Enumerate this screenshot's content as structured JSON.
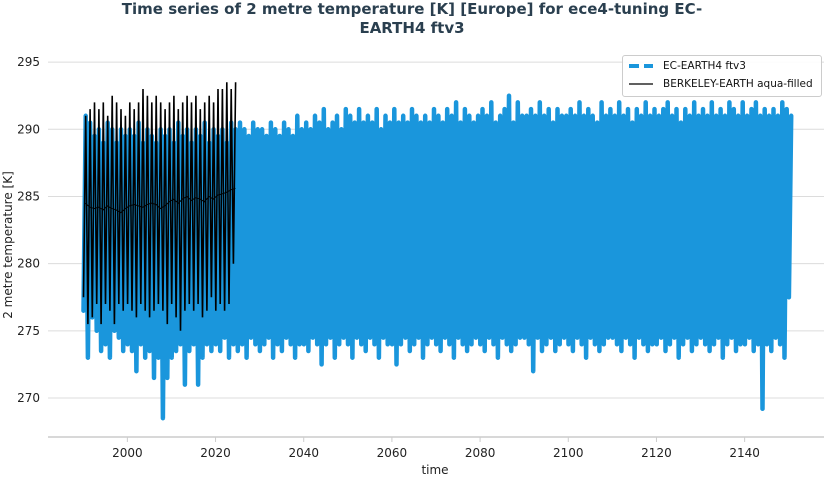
{
  "chart_data": {
    "type": "line",
    "title": "Time series of 2 metre temperature [K] [Europe] for ece4-tuning EC-EARTH4 ftv3",
    "title_lines": [
      "Time series of 2 metre temperature [K] [Europe] for ece4-tuning EC-",
      "EARTH4 ftv3"
    ],
    "xlabel": "time",
    "ylabel": "2 metre temperature [K]",
    "xlim": [
      1982,
      2158
    ],
    "ylim": [
      267.1,
      295.9
    ],
    "xticks": [
      "2000",
      "2020",
      "2040",
      "2060",
      "2080",
      "2100",
      "2120",
      "2140"
    ],
    "yticks": [
      "270",
      "275",
      "280",
      "285",
      "290",
      "295"
    ],
    "grid": "horizontal",
    "legend_position": "top-right",
    "series": [
      {
        "name": "EC-EARTH4 ftv3",
        "color": "#1a96dc",
        "style": "dashed-legend, thick",
        "x_start_year": 1990,
        "annual_max": [
          291,
          290.5,
          289.5,
          290,
          289,
          290.5,
          290,
          289,
          290,
          289.5,
          290,
          289.5,
          290.5,
          289,
          290,
          289.5,
          289,
          290,
          289.5,
          290,
          289,
          290.5,
          289.5,
          290,
          289,
          290,
          289.5,
          290.5,
          289,
          290,
          289.5,
          290,
          289,
          290.5,
          290,
          290.5,
          290,
          289.5,
          290.5,
          290,
          290,
          289.5,
          290.5,
          290,
          289.5,
          290.5,
          290,
          289.5,
          291,
          290,
          290.5,
          290,
          291,
          290.5,
          291.5,
          290,
          290.5,
          291,
          290,
          291.5,
          291,
          290.5,
          291.5,
          290.5,
          291,
          290.5,
          291.5,
          290,
          291,
          290.5,
          291.5,
          290.5,
          291,
          290.5,
          291.5,
          291,
          290.5,
          291,
          290.5,
          291.5,
          291,
          290.5,
          291.5,
          291,
          292,
          290.5,
          291.5,
          291,
          290.5,
          291,
          291.5,
          291,
          292,
          290.5,
          291,
          291.5,
          292.5,
          290.5,
          292,
          291,
          291,
          291.5,
          291,
          292,
          291,
          291.5,
          290.5,
          291.5,
          291,
          291,
          291.5,
          291,
          292,
          291,
          291.5,
          291,
          290.5,
          292,
          291,
          291.5,
          291,
          292,
          291,
          291.5,
          290.5,
          291.5,
          291,
          292,
          291,
          291.5,
          291,
          291.5,
          292,
          291,
          291.5,
          290.5,
          291.5,
          291,
          292,
          291,
          291.5,
          291,
          292,
          291,
          291.5,
          291,
          292,
          291.5,
          291,
          292,
          291,
          291.5,
          292,
          291,
          291.5,
          291,
          291.5,
          291,
          292,
          291.5,
          291
        ],
        "annual_min": [
          276.5,
          273,
          276,
          275,
          273.5,
          274,
          273,
          275,
          274.5,
          273.5,
          274,
          273.5,
          272,
          274,
          273,
          273.5,
          271.5,
          273,
          268.5,
          271.5,
          273,
          273.5,
          274,
          271,
          273.5,
          274,
          271,
          273,
          274,
          273.5,
          274,
          273.5,
          274.5,
          273,
          274,
          273.5,
          274,
          273,
          274.5,
          274,
          273.5,
          274,
          274.5,
          273,
          274,
          273.5,
          274.5,
          274,
          273,
          274,
          274,
          273.5,
          274.5,
          274,
          272.5,
          274,
          274.5,
          273,
          274,
          274.5,
          274,
          273,
          274.5,
          274,
          273.5,
          274.5,
          274,
          273,
          274.5,
          274,
          274,
          272.5,
          274,
          274.5,
          273.5,
          274,
          274.5,
          273,
          274,
          274.5,
          274,
          273.5,
          274.5,
          274,
          273,
          274.5,
          274,
          273.5,
          274,
          274.5,
          274,
          273.5,
          274.5,
          274,
          273,
          274.5,
          274,
          273.5,
          274,
          274.5,
          274.5,
          274,
          272,
          274.5,
          273.5,
          274,
          274.5,
          273.5,
          274,
          274.5,
          274,
          273.5,
          274.5,
          274,
          273,
          274.5,
          274,
          273.5,
          274,
          274.5,
          274.5,
          274,
          273.5,
          274.5,
          274,
          273,
          274.5,
          274,
          273.5,
          274,
          274,
          274.5,
          273.5,
          274,
          274.5,
          273,
          274,
          274.5,
          273.5,
          274,
          274.5,
          274,
          273.5,
          274,
          274.5,
          273,
          274,
          274.5,
          273.5,
          274,
          274,
          274.5,
          273.5,
          274,
          269.2,
          274,
          273.5,
          274.5,
          274,
          273,
          277.5
        ]
      },
      {
        "name": "BERKELEY-EARTH aqua-filled",
        "color": "#000000",
        "x_start_year": 1990,
        "annual_max": [
          291,
          291.5,
          292,
          291.5,
          292,
          291,
          292.5,
          292,
          291.5,
          291,
          292,
          291.5,
          292,
          293,
          292.5,
          292,
          292.5,
          292,
          291.5,
          292,
          292.5,
          291.5,
          292,
          292.5,
          292,
          292.5,
          291.5,
          292,
          292.5,
          292,
          293,
          293,
          293.5,
          293,
          293.5
        ],
        "annual_min": [
          277.5,
          275.5,
          276,
          277,
          275.5,
          277,
          276.5,
          275.5,
          277,
          276.5,
          277,
          276.5,
          276,
          277,
          276.5,
          276,
          276.5,
          277,
          276.5,
          275.5,
          277,
          276,
          275,
          276.5,
          277,
          276.5,
          277,
          276,
          276.5,
          277.5,
          276.5,
          277,
          276.5,
          277,
          280
        ],
        "annual_mean": [
          284.5,
          284.2,
          284.1,
          284.2,
          284,
          284.3,
          284.1,
          284,
          283.8,
          284.1,
          284.3,
          284.4,
          284.3,
          284.2,
          284.4,
          284.5,
          284.4,
          284.1,
          284.3,
          284.6,
          284.8,
          284.5,
          284.8,
          285,
          284.7,
          284.9,
          284.8,
          284.6,
          285,
          284.8,
          285.1,
          285.2,
          285.3,
          285.5,
          285.6
        ]
      }
    ]
  }
}
